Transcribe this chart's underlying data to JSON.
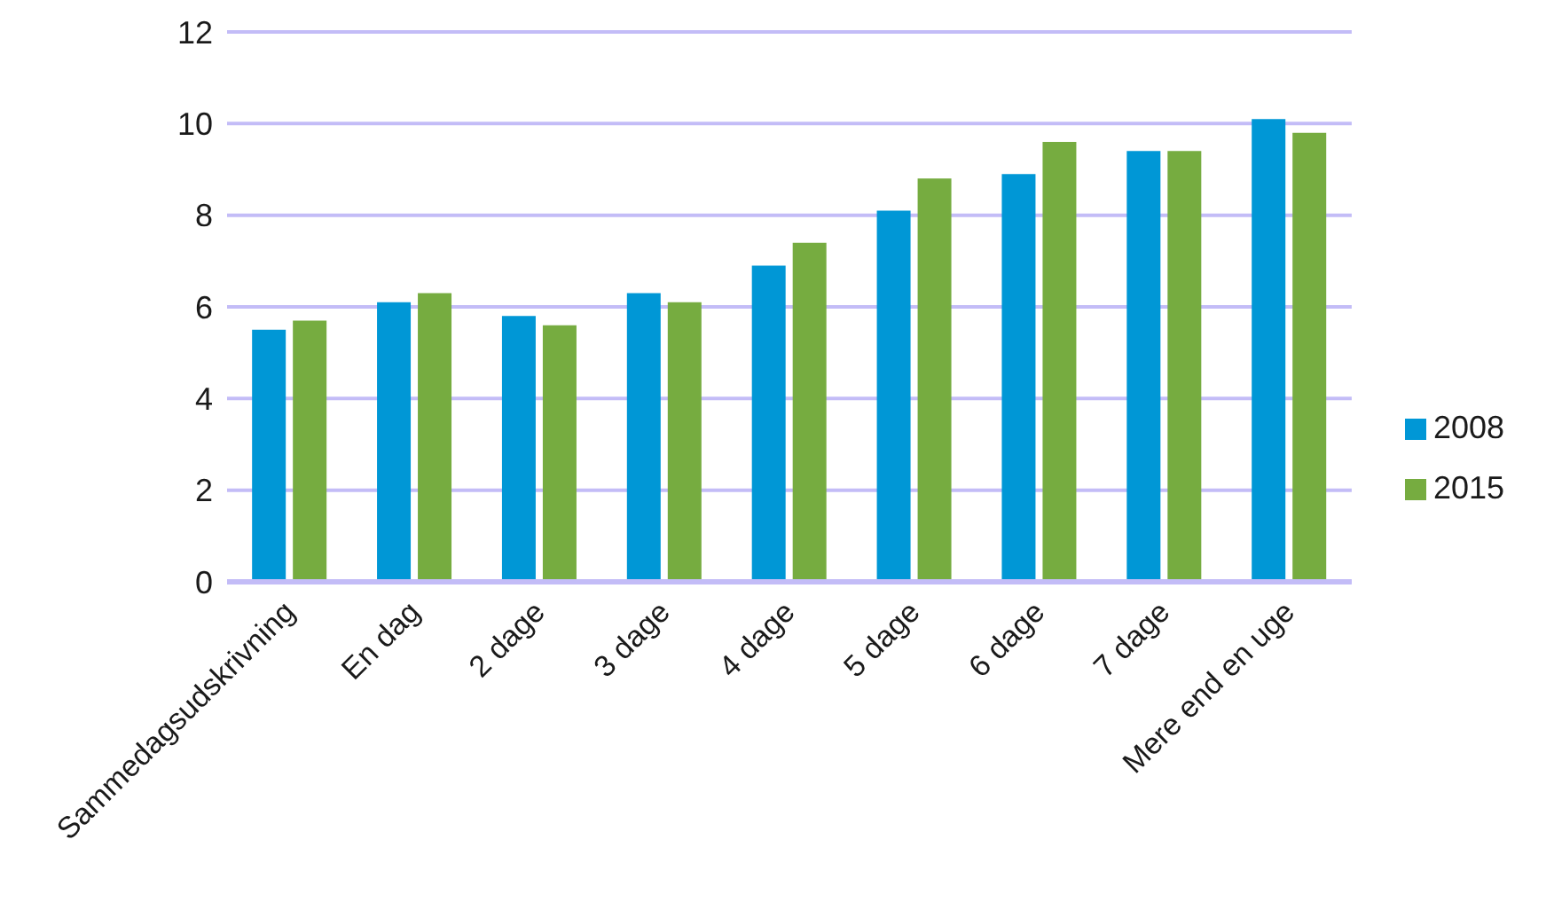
{
  "chart_data": {
    "type": "bar",
    "categories": [
      "Sammedagsudskrivning",
      "En dag",
      "2 dage",
      "3 dage",
      "4 dage",
      "5 dage",
      "6 dage",
      "7 dage",
      "Mere end en uge"
    ],
    "series": [
      {
        "name": "2008",
        "color": "#0097d6",
        "values": [
          5.5,
          6.1,
          5.8,
          6.3,
          6.9,
          8.1,
          8.9,
          9.4,
          10.1
        ]
      },
      {
        "name": "2015",
        "color": "#76ac40",
        "values": [
          5.7,
          6.3,
          5.6,
          6.1,
          7.4,
          8.8,
          9.6,
          9.4,
          9.8
        ]
      }
    ],
    "ylim": [
      0,
      12
    ],
    "yticks": [
      0,
      2,
      4,
      6,
      8,
      10,
      12
    ],
    "grid": "y",
    "legend": "right"
  }
}
